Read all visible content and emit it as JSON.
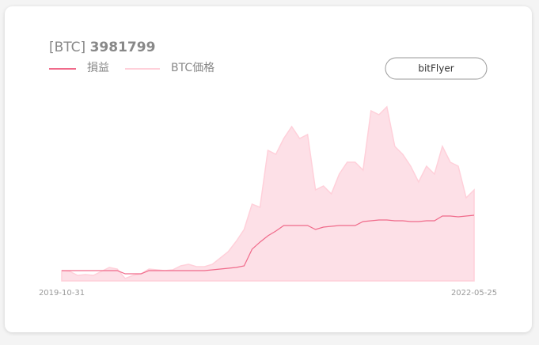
{
  "chart_data": {
    "type": "line",
    "title_prefix": "[BTC]",
    "title_value": "3981799",
    "button": "bitFlyer",
    "categories": [
      "2019-10-31",
      null,
      null,
      null,
      null,
      null,
      null,
      null,
      null,
      null,
      null,
      null,
      null,
      null,
      null,
      null,
      null,
      null,
      null,
      null,
      null,
      null,
      null,
      null,
      null,
      null,
      null,
      null,
      null,
      null,
      null,
      null,
      null,
      null,
      null,
      null,
      null,
      null,
      null,
      null,
      null,
      null,
      null,
      null,
      null,
      null,
      null,
      null,
      null,
      null,
      null,
      null,
      "2022-05-25"
    ],
    "ylim": [
      0,
      7500000
    ],
    "y2lim": [
      -740000,
      12060000
    ],
    "series": [
      {
        "name": "損益",
        "color": "#f06a8a",
        "axis": "y2",
        "values": [
          0,
          0,
          0,
          0,
          0,
          0,
          0,
          0,
          -228000,
          -228000,
          -228000,
          0,
          0,
          0,
          0,
          0,
          0,
          0,
          0,
          57000,
          114000,
          171000,
          228000,
          341000,
          1536000,
          2048000,
          2503000,
          2844000,
          3242000,
          3242000,
          3242000,
          3242000,
          2958000,
          3129000,
          3185000,
          3242000,
          3242000,
          3242000,
          3527000,
          3584000,
          3641000,
          3641000,
          3584000,
          3584000,
          3527000,
          3527000,
          3584000,
          3584000,
          3925000,
          3925000,
          3868000,
          3925000,
          3981799
        ]
      },
      {
        "name": "BTC価格",
        "color": "#ffd0da",
        "values": [
          433000,
          400000,
          233000,
          267000,
          233000,
          400000,
          567000,
          500000,
          100000,
          233000,
          300000,
          500000,
          467000,
          433000,
          467000,
          633000,
          700000,
          600000,
          600000,
          700000,
          967000,
          1233000,
          1667000,
          2167000,
          3233000,
          3100000,
          5500000,
          5333000,
          6000000,
          6500000,
          6000000,
          6167000,
          3833000,
          4000000,
          3667000,
          4500000,
          5000000,
          5000000,
          4667000,
          7167000,
          7000000,
          7333000,
          5667000,
          5333000,
          4833000,
          4167000,
          4833000,
          4500000,
          5667000,
          5000000,
          4833000,
          3500000,
          3833000
        ]
      }
    ]
  }
}
